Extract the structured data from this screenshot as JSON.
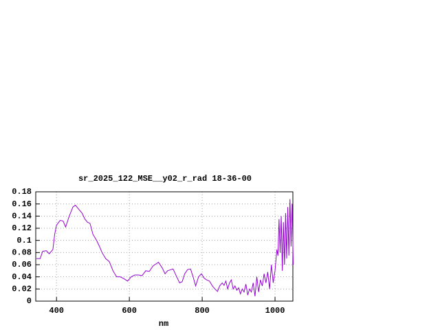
{
  "chart_data": {
    "type": "line",
    "title": "sr_2025_122_MSE__y02_r_rad 18-36-00",
    "x_label": "nm",
    "color": "#9400d3",
    "grid": true,
    "x": [
      345,
      355,
      362,
      372,
      380,
      390,
      395,
      400,
      410,
      418,
      425,
      435,
      445,
      452,
      460,
      470,
      478,
      485,
      492,
      500,
      510,
      518,
      525,
      535,
      545,
      555,
      565,
      575,
      585,
      595,
      605,
      615,
      625,
      635,
      645,
      655,
      665,
      675,
      680,
      690,
      698,
      705,
      715,
      720,
      730,
      738,
      745,
      752,
      760,
      768,
      775,
      782,
      790,
      798,
      805,
      812,
      820,
      828,
      835,
      842,
      848,
      855,
      860,
      865,
      870,
      875,
      880,
      885,
      890,
      895,
      900,
      905,
      910,
      915,
      920,
      925,
      930,
      935,
      940,
      945,
      950,
      955,
      960,
      965,
      970,
      975,
      980,
      985,
      990,
      995,
      1000,
      1005,
      1008,
      1011,
      1014,
      1017,
      1020,
      1023,
      1026,
      1029,
      1032,
      1035,
      1038,
      1041,
      1044,
      1047,
      1050
    ],
    "values": [
      0.07,
      0.07,
      0.082,
      0.083,
      0.078,
      0.085,
      0.11,
      0.125,
      0.133,
      0.132,
      0.122,
      0.14,
      0.155,
      0.158,
      0.152,
      0.145,
      0.135,
      0.13,
      0.128,
      0.11,
      0.1,
      0.09,
      0.08,
      0.07,
      0.065,
      0.05,
      0.04,
      0.04,
      0.037,
      0.033,
      0.04,
      0.043,
      0.043,
      0.042,
      0.05,
      0.049,
      0.058,
      0.062,
      0.064,
      0.055,
      0.045,
      0.05,
      0.052,
      0.053,
      0.04,
      0.03,
      0.032,
      0.045,
      0.052,
      0.053,
      0.04,
      0.025,
      0.04,
      0.045,
      0.038,
      0.035,
      0.033,
      0.025,
      0.02,
      0.016,
      0.025,
      0.03,
      0.026,
      0.033,
      0.02,
      0.03,
      0.035,
      0.02,
      0.025,
      0.018,
      0.022,
      0.012,
      0.02,
      0.015,
      0.028,
      0.01,
      0.02,
      0.015,
      0.03,
      0.008,
      0.04,
      0.015,
      0.035,
      0.025,
      0.045,
      0.03,
      0.048,
      0.02,
      0.06,
      0.03,
      0.05,
      0.085,
      0.075,
      0.135,
      0.08,
      0.14,
      0.05,
      0.13,
      0.06,
      0.145,
      0.07,
      0.155,
      0.075,
      0.168,
      0.09,
      0.16,
      0.06
    ],
    "xlim": [
      343,
      1049
    ],
    "xticks": [
      400,
      600,
      800,
      1000
    ],
    "ylim": [
      0,
      0.18
    ],
    "yticks": [
      0,
      0.02,
      0.04,
      0.06,
      0.08,
      0.1,
      0.12,
      0.14,
      0.16,
      0.18
    ]
  }
}
